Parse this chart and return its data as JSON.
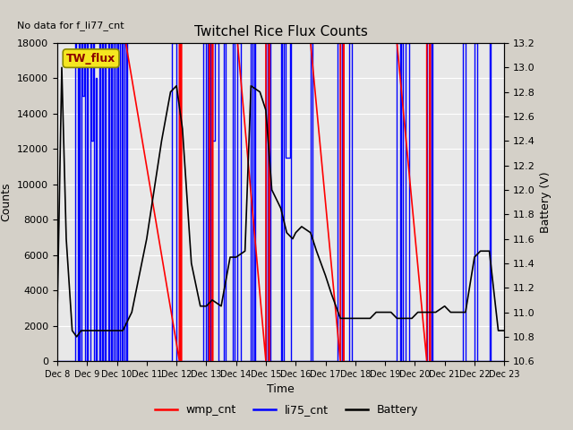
{
  "title": "Twitchel Rice Flux Counts",
  "no_data_text": "No data for f_li77_cnt",
  "tw_flux_label": "TW_flux",
  "xlabel": "Time",
  "ylabel_left": "Counts",
  "ylabel_right": "Battery (V)",
  "xlim": [
    0,
    15
  ],
  "ylim_left": [
    0,
    18000
  ],
  "ylim_right": [
    10.6,
    13.2
  ],
  "xtick_labels": [
    "Dec 8",
    "Dec 9",
    "Dec 10",
    "Dec 11",
    "Dec 12",
    "Dec 13",
    "Dec 14",
    "Dec 15",
    "Dec 16",
    "Dec 17",
    "Dec 18",
    "Dec 19",
    "Dec 20",
    "Dec 21",
    "Dec 22",
    "Dec 23"
  ],
  "yticks_left": [
    0,
    2000,
    4000,
    6000,
    8000,
    10000,
    12000,
    14000,
    16000,
    18000
  ],
  "yticks_right": [
    10.6,
    10.8,
    11.0,
    11.2,
    11.4,
    11.6,
    11.8,
    12.0,
    12.2,
    12.4,
    12.6,
    12.8,
    13.0,
    13.2
  ],
  "fig_facecolor": "#d4d0c8",
  "ax_facecolor": "#e8e8e8",
  "grid_color": "white",
  "wmp_color": "red",
  "li75_color": "blue",
  "batt_color": "black",
  "legend_labels": [
    "wmp_cnt",
    "li75_cnt",
    "Battery"
  ],
  "wmp_data": {
    "segments": [
      [
        0.0,
        18000
      ],
      [
        2.3,
        18000
      ],
      [
        4.1,
        0
      ],
      [
        4.1,
        18000
      ],
      [
        4.15,
        18000
      ],
      [
        4.15,
        0
      ],
      [
        4.17,
        0
      ],
      [
        4.17,
        18000
      ],
      [
        5.1,
        18000
      ],
      [
        5.1,
        0
      ],
      [
        5.12,
        0
      ],
      [
        5.12,
        18000
      ],
      [
        5.2,
        18000
      ],
      [
        5.2,
        0
      ],
      [
        5.22,
        0
      ],
      [
        5.22,
        18000
      ],
      [
        6.05,
        18000
      ],
      [
        7.0,
        0
      ],
      [
        7.0,
        18000
      ],
      [
        7.1,
        18000
      ],
      [
        7.1,
        0
      ],
      [
        7.12,
        0
      ],
      [
        7.12,
        18000
      ],
      [
        8.5,
        18000
      ],
      [
        9.5,
        0
      ],
      [
        9.5,
        18000
      ],
      [
        9.6,
        18000
      ],
      [
        9.6,
        0
      ],
      [
        9.62,
        0
      ],
      [
        9.62,
        18000
      ],
      [
        11.4,
        18000
      ],
      [
        12.4,
        0
      ],
      [
        12.4,
        18000
      ],
      [
        12.5,
        18000
      ],
      [
        12.5,
        0
      ],
      [
        12.52,
        0
      ],
      [
        12.52,
        18000
      ],
      [
        14.1,
        18000
      ],
      [
        15.0,
        18000
      ]
    ]
  },
  "li75_data": {
    "segments": [
      [
        0.0,
        0
      ],
      [
        0.6,
        0
      ],
      [
        0.6,
        18000
      ],
      [
        0.63,
        18000
      ],
      [
        0.63,
        17000
      ],
      [
        0.7,
        17000
      ],
      [
        0.7,
        0
      ],
      [
        0.72,
        0
      ],
      [
        0.72,
        18000
      ],
      [
        0.75,
        18000
      ],
      [
        0.75,
        0
      ],
      [
        0.8,
        0
      ],
      [
        0.8,
        18000
      ],
      [
        0.83,
        18000
      ],
      [
        0.83,
        15000
      ],
      [
        0.9,
        15000
      ],
      [
        0.9,
        18000
      ],
      [
        0.93,
        18000
      ],
      [
        0.93,
        0
      ],
      [
        1.0,
        0
      ],
      [
        1.0,
        18000
      ],
      [
        1.03,
        18000
      ],
      [
        1.03,
        0
      ],
      [
        1.1,
        0
      ],
      [
        1.1,
        18000
      ],
      [
        1.13,
        18000
      ],
      [
        1.13,
        12500
      ],
      [
        1.2,
        12500
      ],
      [
        1.2,
        18000
      ],
      [
        1.23,
        18000
      ],
      [
        1.23,
        0
      ],
      [
        1.3,
        0
      ],
      [
        1.3,
        16000
      ],
      [
        1.33,
        16000
      ],
      [
        1.33,
        0
      ],
      [
        1.4,
        0
      ],
      [
        1.4,
        18000
      ],
      [
        1.45,
        18000
      ],
      [
        1.45,
        0
      ],
      [
        1.5,
        0
      ],
      [
        1.5,
        18000
      ],
      [
        1.53,
        18000
      ],
      [
        1.53,
        0
      ],
      [
        1.6,
        0
      ],
      [
        1.6,
        18000
      ],
      [
        1.63,
        18000
      ],
      [
        1.63,
        0
      ],
      [
        1.7,
        0
      ],
      [
        1.7,
        18000
      ],
      [
        1.73,
        18000
      ],
      [
        1.73,
        0
      ],
      [
        1.8,
        0
      ],
      [
        1.8,
        18000
      ],
      [
        1.83,
        18000
      ],
      [
        1.83,
        0
      ],
      [
        1.9,
        0
      ],
      [
        1.9,
        18000
      ],
      [
        1.95,
        18000
      ],
      [
        1.95,
        0
      ],
      [
        2.0,
        0
      ],
      [
        2.0,
        18000
      ],
      [
        2.05,
        18000
      ],
      [
        2.05,
        0
      ],
      [
        2.1,
        0
      ],
      [
        2.1,
        18000
      ],
      [
        2.15,
        18000
      ],
      [
        2.15,
        0
      ],
      [
        2.2,
        0
      ],
      [
        2.2,
        18000
      ],
      [
        2.25,
        18000
      ],
      [
        2.25,
        0
      ],
      [
        2.3,
        0
      ],
      [
        2.3,
        18000
      ],
      [
        2.35,
        18000
      ],
      [
        2.35,
        0
      ],
      [
        3.85,
        0
      ],
      [
        3.85,
        18000
      ],
      [
        4.0,
        18000
      ],
      [
        4.0,
        0
      ],
      [
        4.08,
        0
      ],
      [
        4.08,
        18000
      ],
      [
        4.12,
        18000
      ],
      [
        4.12,
        0
      ],
      [
        4.9,
        0
      ],
      [
        4.9,
        18000
      ],
      [
        5.0,
        18000
      ],
      [
        5.0,
        0
      ],
      [
        5.05,
        0
      ],
      [
        5.05,
        18000
      ],
      [
        5.1,
        18000
      ],
      [
        5.1,
        0
      ],
      [
        5.15,
        0
      ],
      [
        5.15,
        18000
      ],
      [
        5.2,
        18000
      ],
      [
        5.2,
        12500
      ],
      [
        5.3,
        12500
      ],
      [
        5.3,
        18000
      ],
      [
        5.4,
        18000
      ],
      [
        5.4,
        0
      ],
      [
        5.6,
        0
      ],
      [
        5.6,
        18000
      ],
      [
        5.65,
        18000
      ],
      [
        5.65,
        0
      ],
      [
        5.9,
        0
      ],
      [
        5.9,
        18000
      ],
      [
        5.95,
        18000
      ],
      [
        5.95,
        0
      ],
      [
        6.05,
        0
      ],
      [
        6.05,
        18000
      ],
      [
        6.15,
        18000
      ],
      [
        6.15,
        0
      ],
      [
        6.5,
        0
      ],
      [
        6.5,
        18000
      ],
      [
        6.55,
        18000
      ],
      [
        6.55,
        0
      ],
      [
        6.6,
        0
      ],
      [
        6.6,
        18000
      ],
      [
        6.65,
        18000
      ],
      [
        6.65,
        0
      ],
      [
        7.0,
        0
      ],
      [
        7.0,
        18000
      ],
      [
        7.05,
        18000
      ],
      [
        7.05,
        0
      ],
      [
        7.1,
        0
      ],
      [
        7.1,
        18000
      ],
      [
        7.15,
        18000
      ],
      [
        7.15,
        0
      ],
      [
        7.5,
        0
      ],
      [
        7.5,
        18000
      ],
      [
        7.55,
        18000
      ],
      [
        7.55,
        0
      ],
      [
        7.6,
        0
      ],
      [
        7.6,
        18000
      ],
      [
        7.65,
        18000
      ],
      [
        7.65,
        11500
      ],
      [
        7.8,
        11500
      ],
      [
        7.8,
        18000
      ],
      [
        7.85,
        18000
      ],
      [
        7.85,
        0
      ],
      [
        8.5,
        0
      ],
      [
        8.5,
        18000
      ],
      [
        8.55,
        18000
      ],
      [
        8.55,
        0
      ],
      [
        9.4,
        0
      ],
      [
        9.4,
        18000
      ],
      [
        9.5,
        18000
      ],
      [
        9.5,
        0
      ],
      [
        9.55,
        0
      ],
      [
        9.55,
        18000
      ],
      [
        9.6,
        18000
      ],
      [
        9.6,
        0
      ],
      [
        9.8,
        0
      ],
      [
        9.8,
        18000
      ],
      [
        9.9,
        18000
      ],
      [
        9.9,
        0
      ],
      [
        11.4,
        0
      ],
      [
        11.4,
        18000
      ],
      [
        11.5,
        18000
      ],
      [
        11.5,
        0
      ],
      [
        11.55,
        0
      ],
      [
        11.55,
        18000
      ],
      [
        11.6,
        18000
      ],
      [
        11.6,
        0
      ],
      [
        11.7,
        0
      ],
      [
        11.7,
        18000
      ],
      [
        11.8,
        18000
      ],
      [
        11.8,
        0
      ],
      [
        12.4,
        0
      ],
      [
        12.4,
        18000
      ],
      [
        12.5,
        18000
      ],
      [
        12.5,
        0
      ],
      [
        12.55,
        0
      ],
      [
        12.55,
        18000
      ],
      [
        12.6,
        18000
      ],
      [
        12.6,
        0
      ],
      [
        13.6,
        0
      ],
      [
        13.6,
        18000
      ],
      [
        13.7,
        18000
      ],
      [
        13.7,
        0
      ],
      [
        14.0,
        0
      ],
      [
        14.0,
        18000
      ],
      [
        14.1,
        18000
      ],
      [
        14.1,
        0
      ],
      [
        14.5,
        0
      ],
      [
        14.5,
        18000
      ],
      [
        14.55,
        18000
      ],
      [
        14.55,
        0
      ],
      [
        15.0,
        0
      ]
    ]
  },
  "batt_data": {
    "x": [
      0.0,
      0.15,
      0.3,
      0.5,
      0.65,
      0.8,
      1.0,
      1.2,
      1.5,
      1.8,
      2.0,
      2.2,
      2.5,
      3.0,
      3.5,
      3.8,
      4.0,
      4.2,
      4.5,
      4.8,
      5.0,
      5.2,
      5.5,
      5.8,
      6.0,
      6.3,
      6.5,
      6.8,
      7.0,
      7.2,
      7.5,
      7.7,
      7.9,
      8.0,
      8.2,
      8.5,
      8.7,
      9.0,
      9.2,
      9.5,
      9.7,
      9.9,
      10.1,
      10.3,
      10.5,
      10.7,
      10.9,
      11.2,
      11.4,
      11.5,
      11.7,
      11.9,
      12.1,
      12.3,
      12.5,
      12.7,
      13.0,
      13.2,
      13.5,
      13.7,
      14.0,
      14.2,
      14.5,
      14.8,
      15.0
    ],
    "y": [
      11.0,
      13.0,
      11.6,
      10.85,
      10.8,
      10.85,
      10.85,
      10.85,
      10.85,
      10.85,
      10.85,
      10.85,
      11.0,
      11.6,
      12.4,
      12.8,
      12.85,
      12.5,
      11.4,
      11.05,
      11.05,
      11.1,
      11.05,
      11.45,
      11.45,
      11.5,
      12.85,
      12.8,
      12.65,
      12.0,
      11.85,
      11.65,
      11.6,
      11.65,
      11.7,
      11.65,
      11.5,
      11.3,
      11.15,
      10.95,
      10.95,
      10.95,
      10.95,
      10.95,
      10.95,
      11.0,
      11.0,
      11.0,
      10.95,
      10.95,
      10.95,
      10.95,
      11.0,
      11.0,
      11.0,
      11.0,
      11.05,
      11.0,
      11.0,
      11.0,
      11.45,
      11.5,
      11.5,
      10.85,
      10.85
    ]
  }
}
